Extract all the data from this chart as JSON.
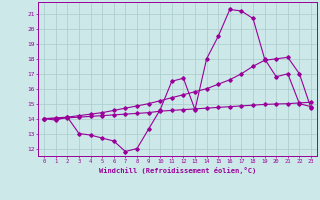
{
  "xlabel": "Windchill (Refroidissement éolien,°C)",
  "bg_color": "#cce8e8",
  "grid_color": "#aacccc",
  "line_color": "#990099",
  "xlim": [
    -0.5,
    23.5
  ],
  "ylim": [
    11.5,
    21.8
  ],
  "xticks": [
    0,
    1,
    2,
    3,
    4,
    5,
    6,
    7,
    8,
    9,
    10,
    11,
    12,
    13,
    14,
    15,
    16,
    17,
    18,
    19,
    20,
    21,
    22,
    23
  ],
  "yticks": [
    12,
    13,
    14,
    15,
    16,
    17,
    18,
    19,
    20,
    21
  ],
  "line1_x": [
    0,
    1,
    2,
    3,
    4,
    5,
    6,
    7,
    8,
    9,
    10,
    11,
    12,
    13,
    14,
    15,
    16,
    17,
    18,
    19,
    20,
    21,
    22,
    23
  ],
  "line1_y": [
    14.0,
    13.9,
    14.1,
    13.0,
    12.9,
    12.7,
    12.5,
    11.8,
    12.0,
    13.3,
    14.6,
    16.5,
    16.7,
    14.6,
    18.0,
    19.5,
    21.3,
    21.2,
    20.7,
    18.0,
    16.8,
    17.0,
    15.0,
    14.8
  ],
  "line2_x": [
    0,
    1,
    2,
    3,
    4,
    5,
    6,
    7,
    8,
    9,
    10,
    11,
    12,
    13,
    14,
    15,
    16,
    17,
    18,
    19,
    20,
    21,
    22,
    23
  ],
  "line2_y": [
    14.0,
    14.0,
    14.05,
    14.1,
    14.15,
    14.2,
    14.25,
    14.3,
    14.35,
    14.4,
    14.5,
    14.55,
    14.6,
    14.65,
    14.7,
    14.75,
    14.8,
    14.85,
    14.9,
    14.95,
    14.98,
    15.0,
    15.05,
    15.1
  ],
  "line3_x": [
    0,
    1,
    2,
    3,
    4,
    5,
    6,
    7,
    8,
    9,
    10,
    11,
    12,
    13,
    14,
    15,
    16,
    17,
    18,
    19,
    20,
    21,
    22,
    23
  ],
  "line3_y": [
    14.0,
    14.05,
    14.1,
    14.2,
    14.3,
    14.4,
    14.55,
    14.7,
    14.85,
    15.0,
    15.2,
    15.4,
    15.6,
    15.8,
    16.0,
    16.3,
    16.6,
    17.0,
    17.5,
    17.9,
    18.0,
    18.1,
    17.0,
    14.7
  ]
}
